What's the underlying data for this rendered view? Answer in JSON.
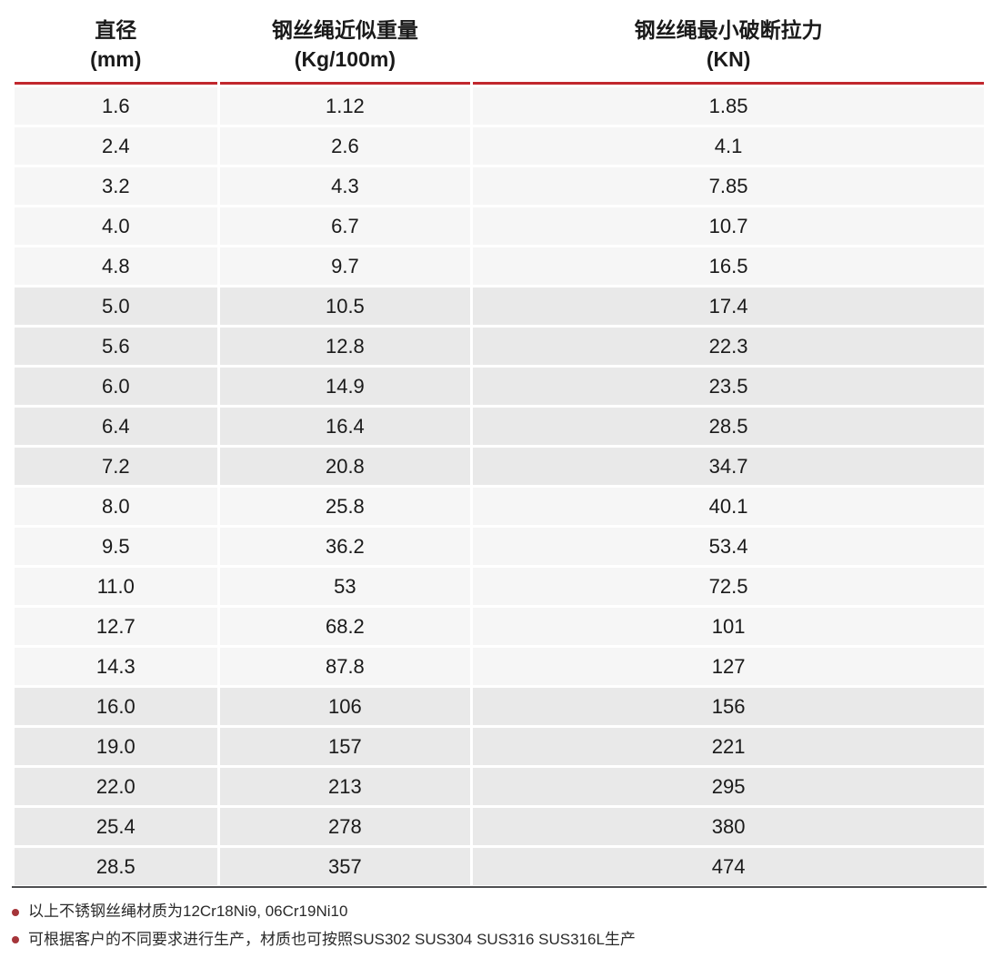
{
  "table": {
    "group_size": 5,
    "columns": [
      {
        "title": "直径",
        "unit": "(mm)"
      },
      {
        "title": "钢丝绳近似重量",
        "unit": "(Kg/100m)"
      },
      {
        "title": "钢丝绳最小破断拉力",
        "unit": "(KN)"
      }
    ],
    "rows": [
      [
        "1.6",
        "1.12",
        "1.85"
      ],
      [
        "2.4",
        "2.6",
        "4.1"
      ],
      [
        "3.2",
        "4.3",
        "7.85"
      ],
      [
        "4.0",
        "6.7",
        "10.7"
      ],
      [
        "4.8",
        "9.7",
        "16.5"
      ],
      [
        "5.0",
        "10.5",
        "17.4"
      ],
      [
        "5.6",
        "12.8",
        "22.3"
      ],
      [
        "6.0",
        "14.9",
        "23.5"
      ],
      [
        "6.4",
        "16.4",
        "28.5"
      ],
      [
        "7.2",
        "20.8",
        "34.7"
      ],
      [
        "8.0",
        "25.8",
        "40.1"
      ],
      [
        "9.5",
        "36.2",
        "53.4"
      ],
      [
        "11.0",
        "53",
        "72.5"
      ],
      [
        "12.7",
        "68.2",
        "101"
      ],
      [
        "14.3",
        "87.8",
        "127"
      ],
      [
        "16.0",
        "106",
        "156"
      ],
      [
        "19.0",
        "157",
        "221"
      ],
      [
        "22.0",
        "213",
        "295"
      ],
      [
        "25.4",
        "278",
        "380"
      ],
      [
        "28.5",
        "357",
        "474"
      ]
    ]
  },
  "notes": {
    "items": [
      "以上不锈钢丝绳材质为12Cr18Ni9, 06Cr19Ni10",
      "可根据客户的不同要求进行生产，材质也可按照SUS302 SUS304 SUS316 SUS316L生产"
    ]
  },
  "colors": {
    "header_rule_red": "#c1272d",
    "row_light": "#f6f6f6",
    "row_dark": "#e9e9e9",
    "bottom_rule": "#4f5052",
    "bullet_red": "#a5353a"
  }
}
